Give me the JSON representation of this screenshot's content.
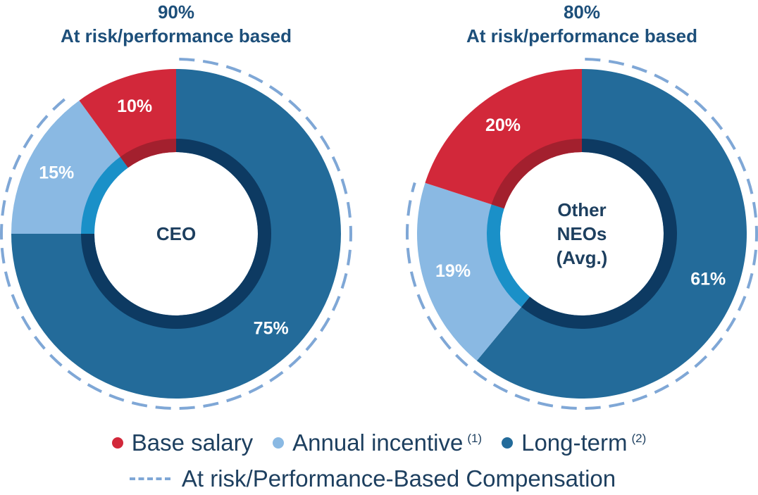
{
  "chart_data": [
    {
      "type": "pie",
      "center_label": [
        "CEO"
      ],
      "header_percent": "90%",
      "header_label": "At risk/performance based",
      "slices": [
        {
          "name": "Base salary",
          "value": 10,
          "label": "10%"
        },
        {
          "name": "Annual incentive",
          "value": 15,
          "label": "15%"
        },
        {
          "name": "Long-term",
          "value": 75,
          "label": "75%"
        }
      ]
    },
    {
      "type": "pie",
      "center_label": [
        "Other",
        "NEOs",
        "(Avg.)"
      ],
      "header_percent": "80%",
      "header_label": "At risk/performance based",
      "slices": [
        {
          "name": "Base salary",
          "value": 20,
          "label": "20%"
        },
        {
          "name": "Annual incentive",
          "value": 19,
          "label": "19%"
        },
        {
          "name": "Long-term",
          "value": 61,
          "label": "61%"
        }
      ]
    }
  ],
  "legend": {
    "base_salary": "Base salary",
    "annual_incentive": "Annual incentive",
    "annual_incentive_note": "(1)",
    "long_term": "Long-term",
    "long_term_note": "(2)",
    "at_risk": "At risk/Performance-Based Compensation"
  },
  "colors": {
    "base_salary": "#d2283a",
    "annual_incentive": "#8ab9e3",
    "long_term": "#236b9a",
    "dashed_ring": "#7fa7d6"
  }
}
